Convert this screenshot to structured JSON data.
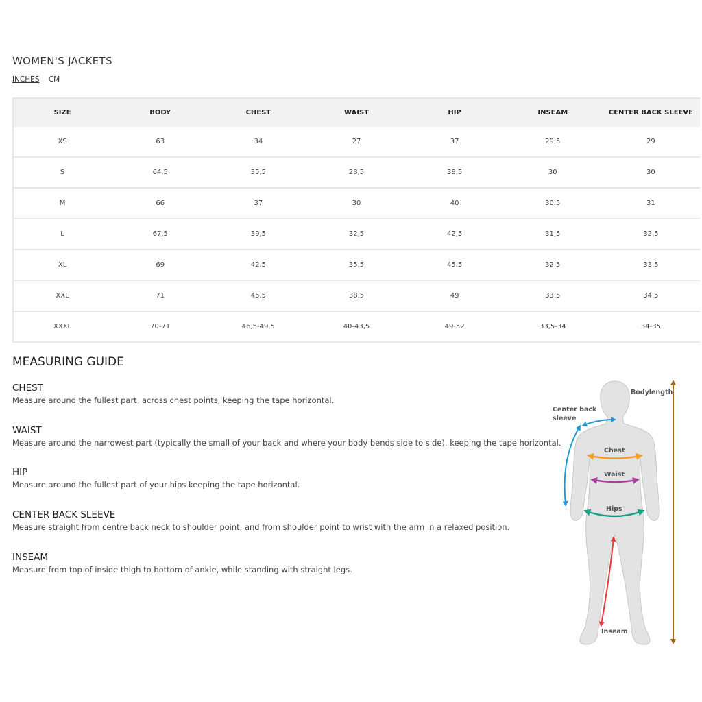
{
  "title": "WOMEN'S JACKETS",
  "units": [
    {
      "label": "INCHES",
      "active": true
    },
    {
      "label": "CM",
      "active": false
    }
  ],
  "table": {
    "headers": [
      "SIZE",
      "BODY",
      "CHEST",
      "WAIST",
      "HIP",
      "INSEAM",
      "CENTER BACK SLEEVE"
    ],
    "rows": [
      [
        "XS",
        "63",
        "34",
        "27",
        "37",
        "29,5",
        "29"
      ],
      [
        "S",
        "64,5",
        "35,5",
        "28,5",
        "38,5",
        "30",
        "30"
      ],
      [
        "M",
        "66",
        "37",
        "30",
        "40",
        "30.5",
        "31"
      ],
      [
        "L",
        "67,5",
        "39,5",
        "32,5",
        "42,5",
        "31,5",
        "32,5"
      ],
      [
        "XL",
        "69",
        "42,5",
        "35,5",
        "45,5",
        "32,5",
        "33,5"
      ],
      [
        "XXL",
        "71",
        "45,5",
        "38,5",
        "49",
        "33,5",
        "34,5"
      ],
      [
        "XXXL",
        "70-71",
        "46,5-49,5",
        "40-43,5",
        "49-52",
        "33,5-34",
        "34-35"
      ]
    ]
  },
  "guide": {
    "title": "MEASURING GUIDE",
    "sections": [
      {
        "title": "CHEST",
        "text": "Measure around the fullest part, across chest points, keeping the tape horizontal."
      },
      {
        "title": "WAIST",
        "text": "Measure around the narrowest part (typically the small of your back and where your body bends side to side), keeping the tape horizontal."
      },
      {
        "title": "HIP",
        "text": "Measure around the fullest part of your hips keeping the tape horizontal."
      },
      {
        "title": "CENTER BACK SLEEVE",
        "text": "Measure straight from centre back neck to shoulder point, and from shoulder point to wrist with the arm in a relaxed position."
      },
      {
        "title": "INSEAM",
        "text": "Measure from top of inside thigh to bottom of ankle, while standing with straight legs."
      }
    ]
  },
  "figure": {
    "labels": {
      "bodylength": "Bodylength",
      "center_back_1": "Center back",
      "center_back_2": "sleeve",
      "chest": "Chest",
      "waist": "Waist",
      "hips": "Hips",
      "inseam": "Inseam"
    },
    "colors": {
      "bodylength": "#9a6a1e",
      "sleeve": "#1e9ad6",
      "chest": "#f0a020",
      "waist": "#a8409a",
      "hips": "#1aa088",
      "inseam": "#e83a3a",
      "body": "#e3e3e3"
    }
  }
}
